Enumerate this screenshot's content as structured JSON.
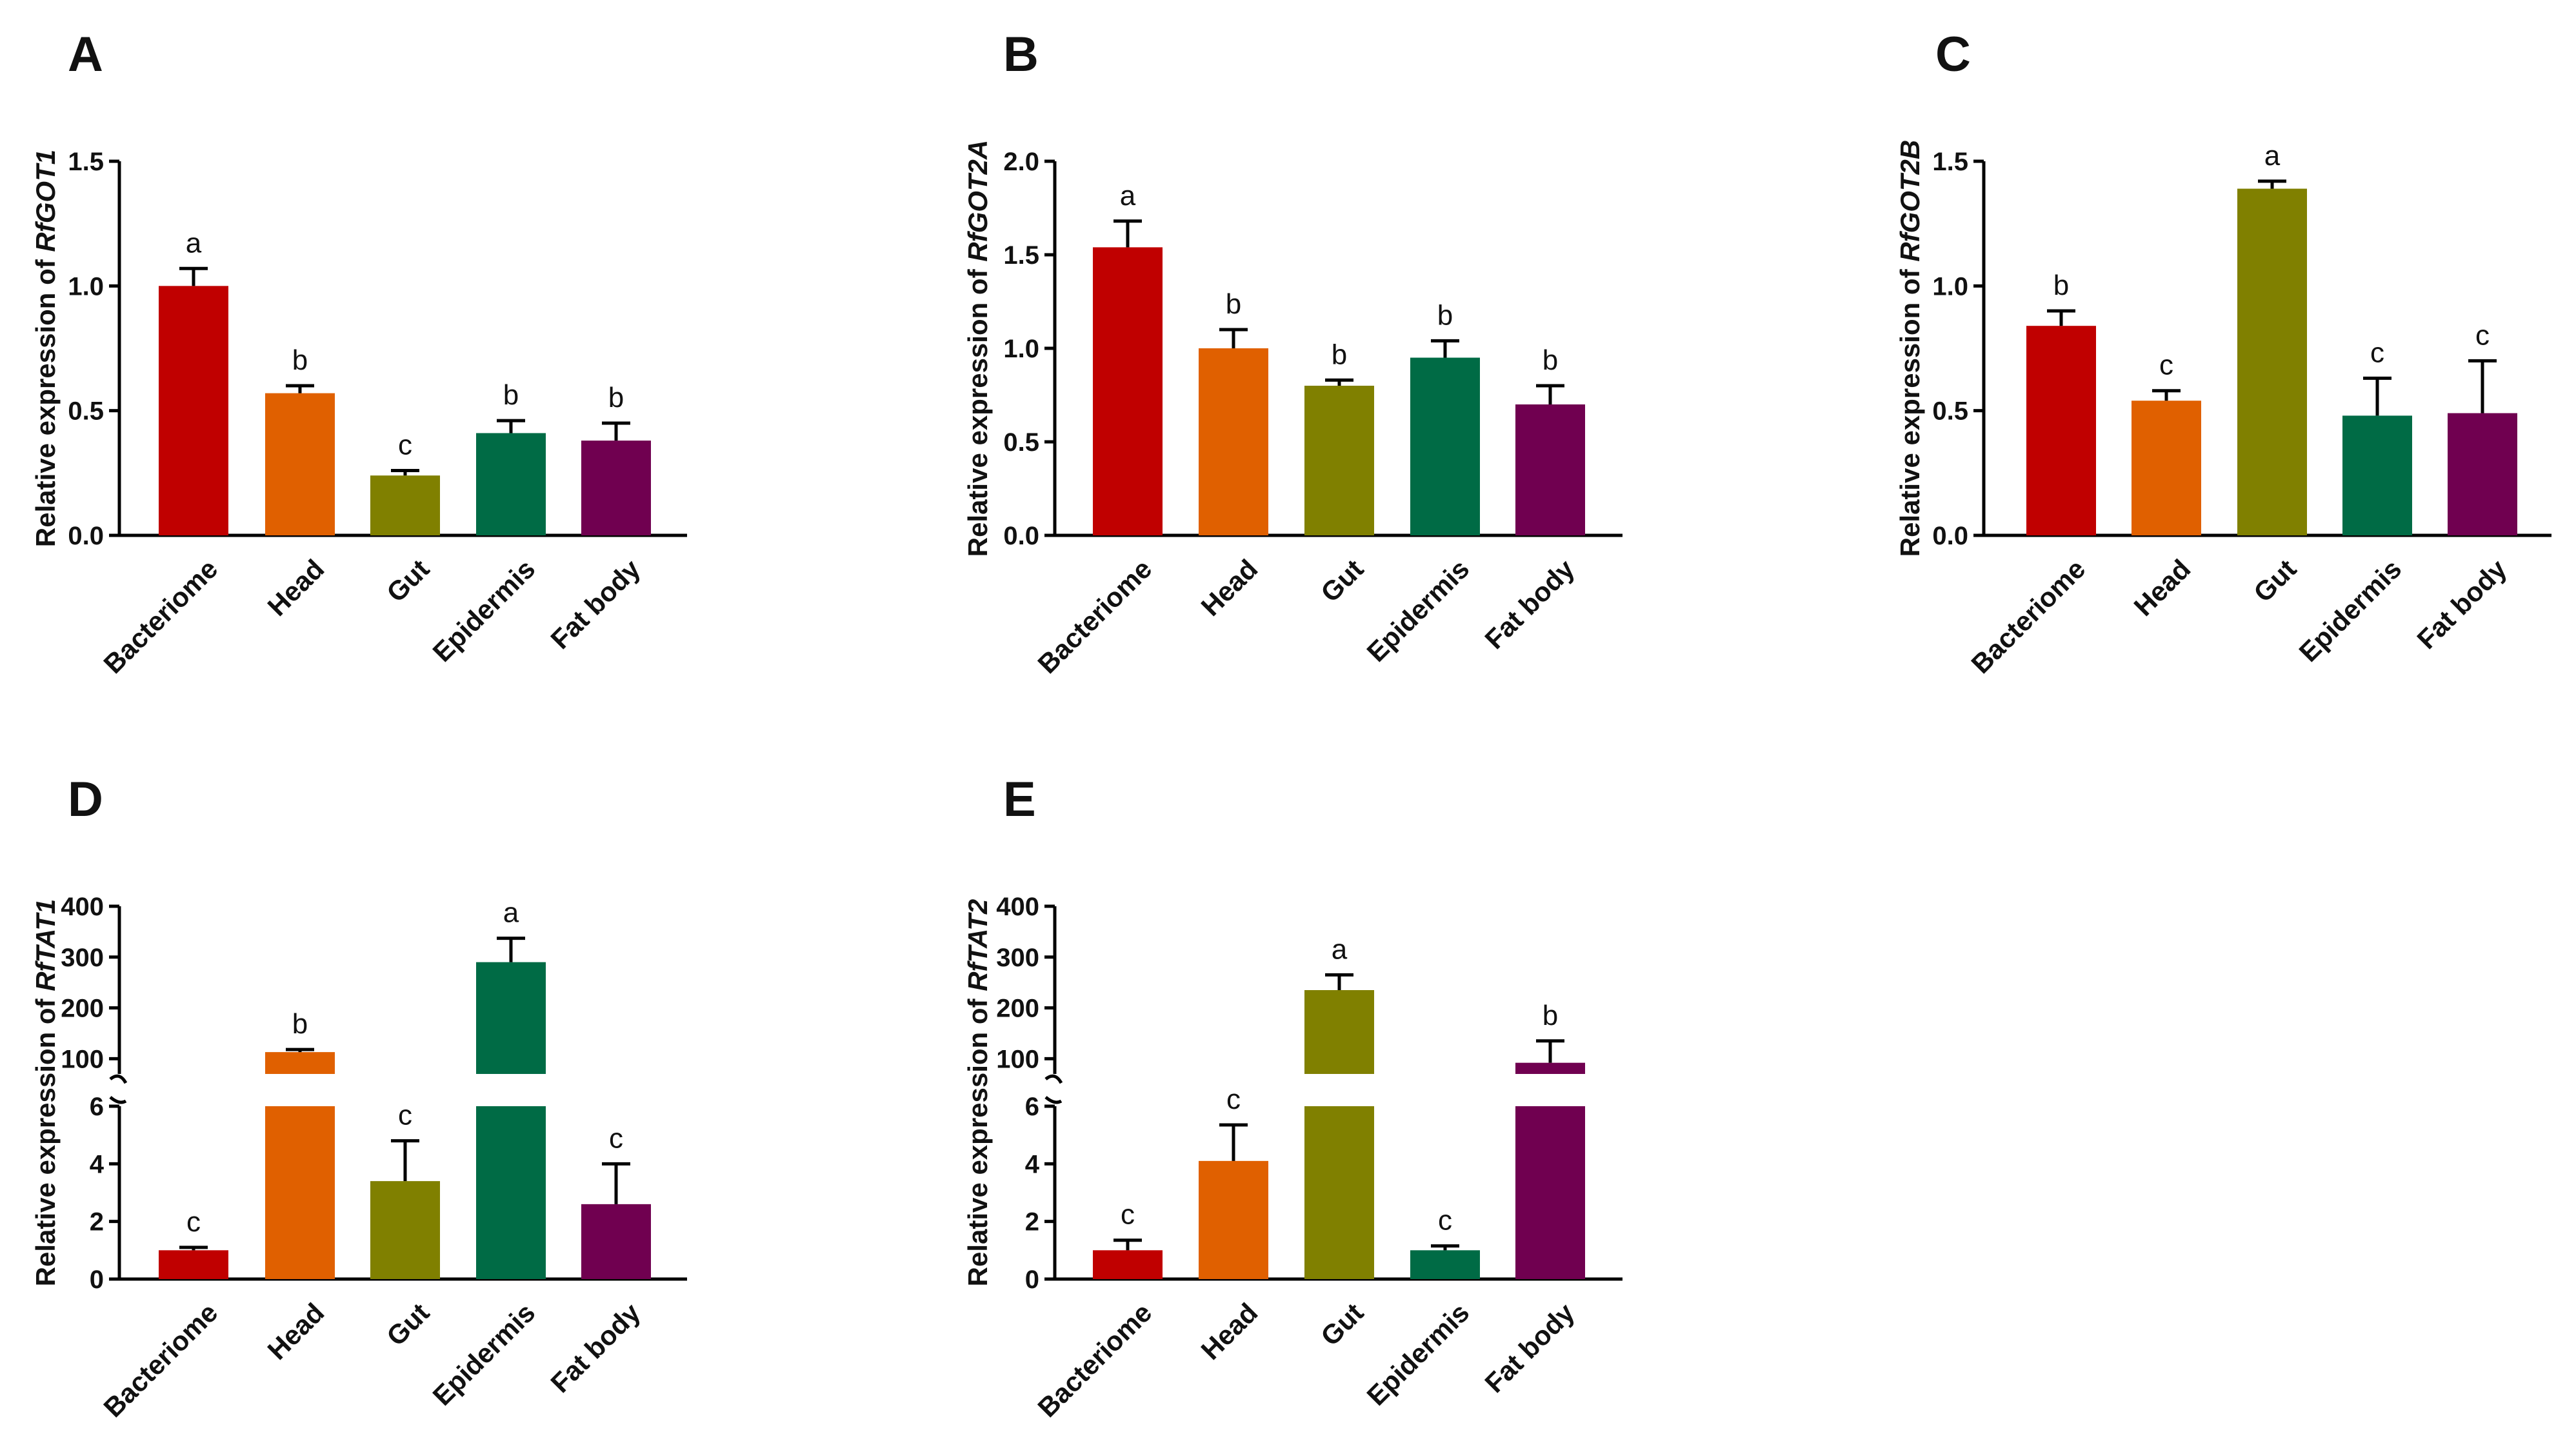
{
  "figure": {
    "categories": [
      "Bacteriome",
      "Head",
      "Gut",
      "Epidermis",
      "Fat body"
    ],
    "colors": [
      "#C00000",
      "#E06000",
      "#808000",
      "#006B45",
      "#700050"
    ],
    "y_label_prefix": "Relative expression of "
  },
  "chart_data": [
    {
      "panel": "A",
      "type": "bar",
      "title": "",
      "gene": "RfGOT1",
      "ylabel": "Relative expression of RfGOT1",
      "categories": [
        "Bacteriome",
        "Head",
        "Gut",
        "Epidermis",
        "Fat body"
      ],
      "values": [
        1.0,
        0.57,
        0.24,
        0.41,
        0.38
      ],
      "errors": [
        0.07,
        0.03,
        0.02,
        0.05,
        0.07
      ],
      "significance": [
        "a",
        "b",
        "c",
        "b",
        "b"
      ],
      "ylim": [
        0,
        1.5
      ],
      "yticks": [
        0.0,
        0.5,
        1.0,
        1.5
      ],
      "ytick_labels": [
        "0.0",
        "0.5",
        "1.0",
        "1.5"
      ]
    },
    {
      "panel": "B",
      "type": "bar",
      "title": "",
      "gene": "RfGOT2A",
      "ylabel": "Relative expression of RfGOT2A",
      "categories": [
        "Bacteriome",
        "Head",
        "Gut",
        "Epidermis",
        "Fat body"
      ],
      "values": [
        1.54,
        1.0,
        0.8,
        0.95,
        0.7
      ],
      "errors": [
        0.14,
        0.1,
        0.03,
        0.09,
        0.1
      ],
      "significance": [
        "a",
        "b",
        "b",
        "b",
        "b"
      ],
      "ylim": [
        0,
        2.0
      ],
      "yticks": [
        0.0,
        0.5,
        1.0,
        1.5,
        2.0
      ],
      "ytick_labels": [
        "0.0",
        "0.5",
        "1.0",
        "1.5",
        "2.0"
      ]
    },
    {
      "panel": "C",
      "type": "bar",
      "title": "",
      "gene": "RfGOT2B",
      "ylabel": "Relative expression of RfGOT2B",
      "categories": [
        "Bacteriome",
        "Head",
        "Gut",
        "Epidermis",
        "Fat body"
      ],
      "values": [
        0.84,
        0.54,
        1.39,
        0.48,
        0.49
      ],
      "errors": [
        0.06,
        0.04,
        0.03,
        0.15,
        0.21
      ],
      "significance": [
        "b",
        "c",
        "a",
        "c",
        "c"
      ],
      "ylim": [
        0,
        1.5
      ],
      "yticks": [
        0.0,
        0.5,
        1.0,
        1.5
      ],
      "ytick_labels": [
        "0.0",
        "0.5",
        "1.0",
        "1.5"
      ]
    },
    {
      "panel": "D",
      "type": "bar",
      "title": "",
      "gene": "RfTAT1",
      "ylabel": "Relative expression of RfTAT1",
      "broken_axis": true,
      "categories": [
        "Bacteriome",
        "Head",
        "Gut",
        "Epidermis",
        "Fat body"
      ],
      "values": [
        1.0,
        113,
        3.4,
        290,
        2.6
      ],
      "errors": [
        0.1,
        5,
        1.4,
        47,
        1.4
      ],
      "significance": [
        "c",
        "b",
        "c",
        "a",
        "c"
      ],
      "lower_range": [
        0,
        6
      ],
      "upper_range": [
        70,
        400
      ],
      "yticks_lower": [
        0,
        2,
        4,
        6
      ],
      "ytick_labels_lower": [
        "0",
        "2",
        "4",
        "6"
      ],
      "yticks_upper": [
        100,
        200,
        300,
        400
      ],
      "ytick_labels_upper": [
        "100",
        "200",
        "300",
        "400"
      ]
    },
    {
      "panel": "E",
      "type": "bar",
      "title": "",
      "gene": "RfTAT2",
      "ylabel": "Relative expression of RfTAT2",
      "broken_axis": true,
      "categories": [
        "Bacteriome",
        "Head",
        "Gut",
        "Epidermis",
        "Fat body"
      ],
      "values": [
        1.0,
        4.1,
        235,
        1.0,
        92
      ],
      "errors": [
        0.35,
        1.25,
        30,
        0.15,
        43
      ],
      "significance": [
        "c",
        "c",
        "a",
        "c",
        "b"
      ],
      "lower_range": [
        0,
        6
      ],
      "upper_range": [
        70,
        400
      ],
      "yticks_lower": [
        0,
        2,
        4,
        6
      ],
      "ytick_labels_lower": [
        "0",
        "2",
        "4",
        "6"
      ],
      "yticks_upper": [
        100,
        200,
        300,
        400
      ],
      "ytick_labels_upper": [
        "100",
        "200",
        "300",
        "400"
      ]
    }
  ]
}
